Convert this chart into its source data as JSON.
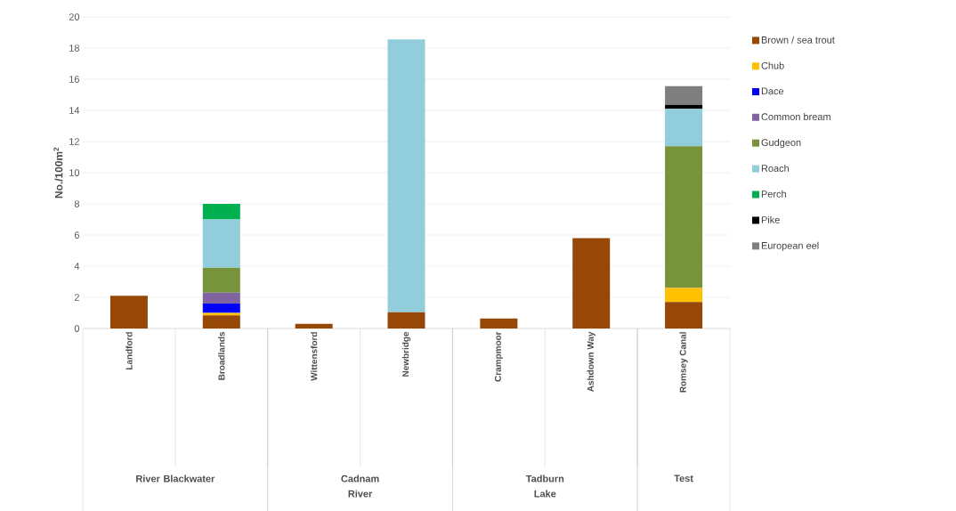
{
  "chart_data": {
    "type": "bar",
    "stacked": true,
    "ylabel": "No./100m$^{2}$",
    "categories": [
      "Landford",
      "Broadlands",
      "Wittensford",
      "Newbridge",
      "Crampmoor",
      "Ashdown Way",
      "Romsey Canal"
    ],
    "annotations": [
      "River Blackwater",
      "Cadnam River",
      "Tadburn Lake",
      "Test"
    ],
    "series": [
      {
        "name": "Brown / sea trout",
        "color": "#974706",
        "values": [
          2.1,
          0.85,
          0.3,
          1.05,
          0.65,
          5.8,
          1.7
        ]
      },
      {
        "name": "Chub",
        "color": "#ffc000",
        "values": [
          null,
          0.15,
          null,
          null,
          null,
          null,
          0.9
        ]
      },
      {
        "name": "Dace",
        "color": "#0000ff",
        "values": [
          null,
          0.6,
          null,
          null,
          null,
          null,
          null
        ]
      },
      {
        "name": "Common bream",
        "color": "#8064a2",
        "values": [
          null,
          0.7,
          null,
          null,
          null,
          null,
          null
        ]
      },
      {
        "name": "Gudgeon",
        "color": "#77933c",
        "values": [
          null,
          1.6,
          null,
          null,
          null,
          null,
          9.1
        ]
      },
      {
        "name": "Roach",
        "color": "#92cddc",
        "values": [
          null,
          3.1,
          null,
          17.5,
          null,
          null,
          2.4
        ]
      },
      {
        "name": "Perch",
        "color": "#00b050",
        "values": [
          null,
          1.0,
          null,
          null,
          null,
          null,
          null
        ]
      },
      {
        "name": "Pike",
        "color": "#000000",
        "values": [
          null,
          null,
          null,
          null,
          null,
          null,
          0.25
        ]
      },
      {
        "name": "European eel",
        "color": "#7f7f7f",
        "values": [
          null,
          null,
          null,
          null,
          null,
          null,
          1.2
        ]
      }
    ],
    "ylim": [
      0,
      20
    ],
    "yticks": [
      0,
      2,
      4,
      6,
      8,
      10,
      12,
      14,
      16,
      18,
      20
    ],
    "grid": "y",
    "legend": "right"
  }
}
